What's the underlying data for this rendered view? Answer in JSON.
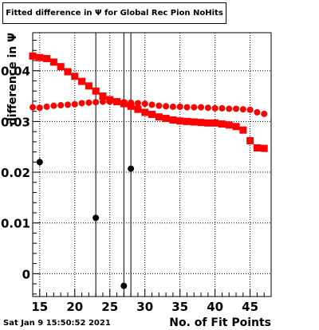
{
  "title": "Fitted difference in  Ψ  for Global Rec Pion NoHits",
  "timestamp": "Sat Jan  9 15:50:52 2021",
  "chart_data": {
    "type": "scatter",
    "title": "Fitted difference in  Ψ  for Global Rec Pion NoHits",
    "xlabel": "No. of Fit Points",
    "ylabel": "difference in  Ψ",
    "xlim": [
      14,
      48
    ],
    "ylim": [
      -0.0045,
      0.0475
    ],
    "grid": true,
    "x_ticks": [
      15,
      20,
      25,
      30,
      35,
      40,
      45
    ],
    "x_tick_labels": [
      "15",
      "20",
      "25",
      "30",
      "35",
      "40",
      "45"
    ],
    "y_ticks": [
      0,
      0.01,
      0.02,
      0.03,
      0.04
    ],
    "y_tick_labels": [
      "0",
      "0.01",
      "0.02",
      "0.03",
      "0.04"
    ],
    "series": [
      {
        "marker": "square",
        "color": "#ff0000",
        "x": [
          14,
          15,
          16,
          17,
          18,
          19,
          20,
          21,
          22,
          23,
          24,
          25,
          26,
          27,
          28,
          29,
          30,
          31,
          32,
          33,
          34,
          35,
          36,
          37,
          38,
          39,
          40,
          41,
          42,
          43,
          44,
          45,
          46,
          47
        ],
        "y": [
          0.0429,
          0.0426,
          0.0424,
          0.0417,
          0.0408,
          0.0398,
          0.0389,
          0.0379,
          0.037,
          0.036,
          0.035,
          0.0343,
          0.0339,
          0.0335,
          0.033,
          0.0324,
          0.0318,
          0.0314,
          0.0309,
          0.0306,
          0.0303,
          0.0301,
          0.03,
          0.0299,
          0.0298,
          0.0297,
          0.0297,
          0.0295,
          0.0293,
          0.029,
          0.0283,
          0.0262,
          0.0248,
          0.0247
        ],
        "yerr": [
          0.0001,
          0.0001,
          0.0001,
          0.0001,
          0.0001,
          0.0001,
          0.0001,
          0.0001,
          0.0001,
          0.0001,
          0.0001,
          0.0001,
          0.0001,
          0.0001,
          0.0001,
          0.0001,
          0.0001,
          0.0001,
          0.0001,
          0.0001,
          0.0001,
          0.0001,
          0.0001,
          0.0001,
          0.0001,
          0.0001,
          0.0001,
          0.0001,
          0.0001,
          0.0001,
          0.0001,
          0.0001,
          0.0001,
          0.0001
        ]
      },
      {
        "marker": "circle",
        "color": "#ff0000",
        "x": [
          14,
          15,
          16,
          17,
          18,
          19,
          20,
          21,
          22,
          23,
          24,
          25,
          26,
          27,
          28,
          29,
          30,
          31,
          32,
          33,
          34,
          35,
          36,
          37,
          38,
          39,
          40,
          41,
          42,
          43,
          44,
          45,
          46,
          47
        ],
        "y": [
          0.0328,
          0.0327,
          0.0329,
          0.0331,
          0.0332,
          0.0333,
          0.0334,
          0.0336,
          0.0337,
          0.0338,
          0.0339,
          0.0339,
          0.0339,
          0.0338,
          0.0337,
          0.0336,
          0.0335,
          0.0333,
          0.0331,
          0.033,
          0.0329,
          0.0329,
          0.0328,
          0.0328,
          0.0328,
          0.0327,
          0.0326,
          0.0326,
          0.0325,
          0.0325,
          0.0324,
          0.0323,
          0.0318,
          0.0315
        ],
        "yerr": [
          0.0003,
          0.0002,
          0.0002,
          0.0002,
          0.0002,
          0.0002,
          0.0002,
          0.0002,
          0.0002,
          0.0002,
          0.0002,
          0.0002,
          0.0002,
          0.0002,
          0.0002,
          0.0002,
          0.0002,
          0.0002,
          0.0002,
          0.0002,
          0.0002,
          0.0002,
          0.0002,
          0.0002,
          0.0002,
          0.0002,
          0.0002,
          0.0002,
          0.0002,
          0.0002,
          0.0002,
          0.0002,
          0.0003,
          0.0003
        ]
      },
      {
        "marker": "circle",
        "color": "#000000",
        "x": [
          15,
          23,
          27,
          28
        ],
        "y": [
          0.022,
          0.011,
          -0.0024,
          0.0207
        ],
        "yerr": [
          0.0008,
          0.05,
          0.05,
          0.05
        ]
      }
    ]
  }
}
